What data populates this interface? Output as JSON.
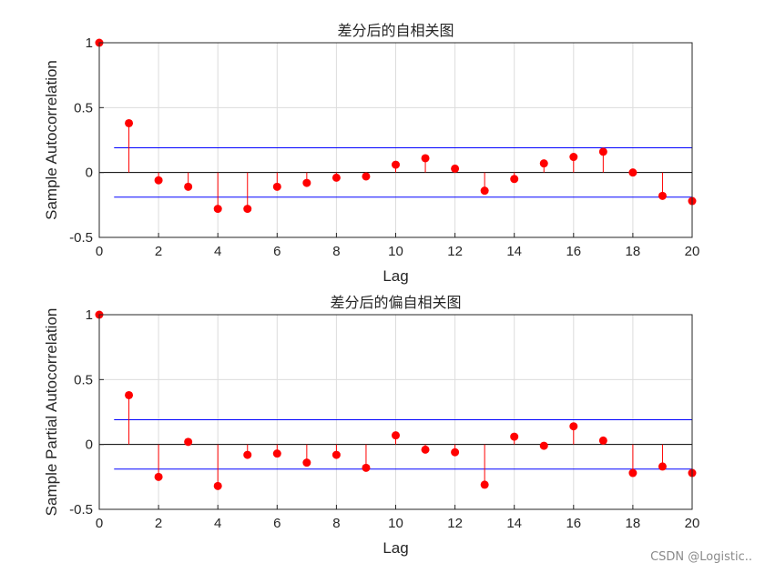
{
  "chart_data": [
    {
      "type": "stem",
      "title": "差分后的自相关图",
      "xlabel": "Lag",
      "ylabel": "Sample Autocorrelation",
      "xlim": [
        0,
        20
      ],
      "ylim": [
        -0.5,
        1
      ],
      "xticks": [
        "0",
        "2",
        "4",
        "6",
        "8",
        "10",
        "12",
        "14",
        "16",
        "18",
        "20"
      ],
      "yticks": [
        "-0.5",
        "0",
        "0.5",
        "1"
      ],
      "grid": true,
      "lags": [
        0,
        1,
        2,
        3,
        4,
        5,
        6,
        7,
        8,
        9,
        10,
        11,
        12,
        13,
        14,
        15,
        16,
        17,
        18,
        19,
        20
      ],
      "values": [
        1.0,
        0.38,
        -0.06,
        -0.11,
        -0.28,
        -0.28,
        -0.11,
        -0.08,
        -0.04,
        -0.03,
        0.06,
        0.11,
        0.03,
        -0.14,
        -0.05,
        0.07,
        0.12,
        0.16,
        0.0,
        -0.18,
        -0.22
      ],
      "bounds": [
        0.19,
        -0.19
      ],
      "colors": {
        "stem": "#ff0000",
        "bound": "#0000ff",
        "zero": "#000000"
      }
    },
    {
      "type": "stem",
      "title": "差分后的偏自相关图",
      "xlabel": "Lag",
      "ylabel": "Sample Partial Autocorrelation",
      "xlim": [
        0,
        20
      ],
      "ylim": [
        -0.5,
        1
      ],
      "xticks": [
        "0",
        "2",
        "4",
        "6",
        "8",
        "10",
        "12",
        "14",
        "16",
        "18",
        "20"
      ],
      "yticks": [
        "-0.5",
        "0",
        "0.5",
        "1"
      ],
      "grid": true,
      "lags": [
        0,
        1,
        2,
        3,
        4,
        5,
        6,
        7,
        8,
        9,
        10,
        11,
        12,
        13,
        14,
        15,
        16,
        17,
        18,
        19,
        20
      ],
      "values": [
        1.0,
        0.38,
        -0.25,
        0.02,
        -0.32,
        -0.08,
        -0.07,
        -0.14,
        -0.08,
        -0.18,
        0.07,
        -0.04,
        -0.06,
        -0.31,
        0.06,
        -0.01,
        0.14,
        0.03,
        -0.22,
        -0.17,
        -0.22
      ],
      "bounds": [
        0.19,
        -0.19
      ],
      "colors": {
        "stem": "#ff0000",
        "bound": "#0000ff",
        "zero": "#000000"
      }
    }
  ],
  "watermark": "CSDN @Logistic.."
}
